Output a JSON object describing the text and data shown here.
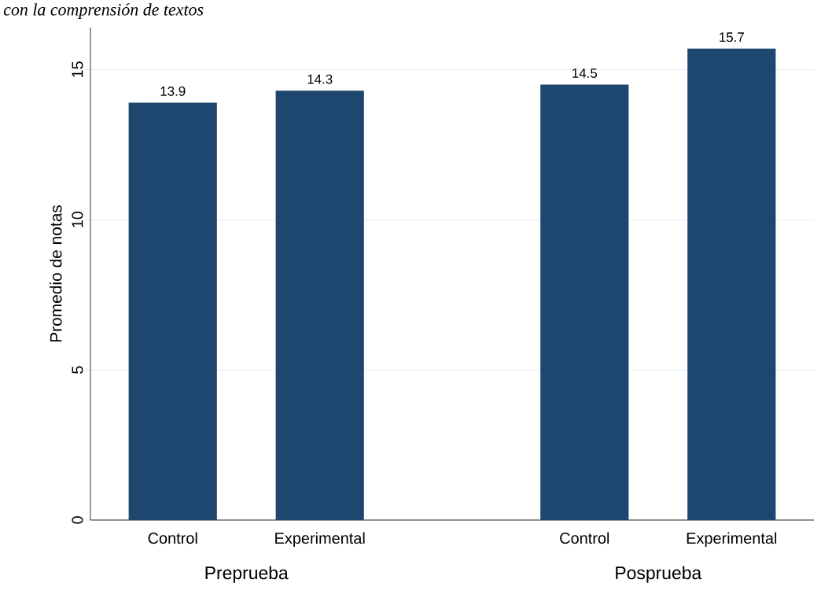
{
  "chart_data": {
    "type": "bar",
    "title": "con la comprensión de textos",
    "categories": [
      "Control",
      "Experimental",
      "Control",
      "Experimental"
    ],
    "values": [
      13.9,
      14.3,
      14.5,
      15.7
    ],
    "color": "#1d476e",
    "ylabel": "Promedio de notas",
    "ylim": [
      0,
      16.4
    ],
    "yticks": [
      0,
      5,
      10,
      15
    ],
    "grid": "y",
    "data_labels": true,
    "annotations": [
      "Preprueba",
      "Posprueba"
    ]
  }
}
